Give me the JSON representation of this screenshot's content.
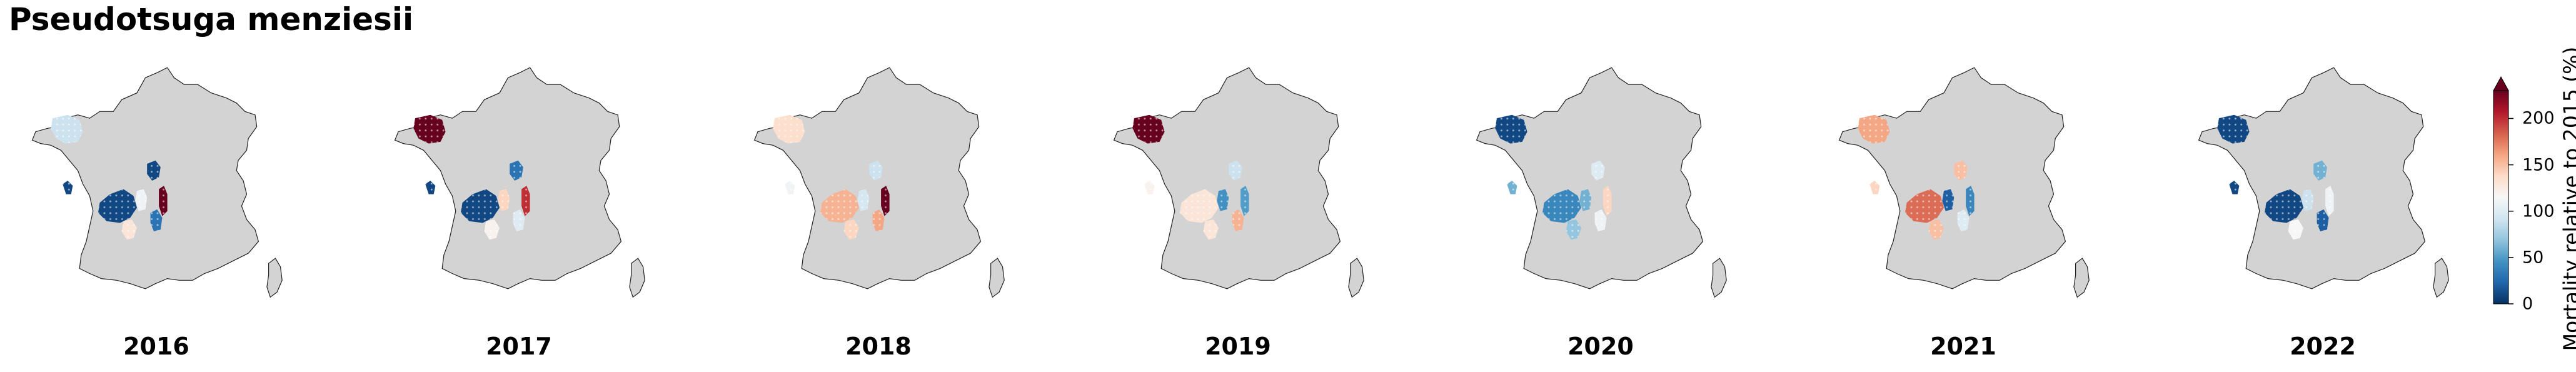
{
  "title": "Pseudotsuga menziesii",
  "colorbar": {
    "label": "Mortality relative to 2015 (%)",
    "ticks": [
      0,
      50,
      100,
      150,
      200
    ],
    "min": 0,
    "max": 230,
    "extend": "max",
    "colormap": "RdBu_r",
    "colors": [
      "#053061",
      "#2166ac",
      "#4393c3",
      "#92c5de",
      "#d1e5f0",
      "#f7f7f7",
      "#fddbc7",
      "#f4a582",
      "#d6604d",
      "#b2182b",
      "#67001f"
    ]
  },
  "background_color": "#d3d3d3",
  "years": [
    {
      "label": "2016",
      "regions": [
        {
          "name": "brittany",
          "value": 90
        },
        {
          "name": "vendee",
          "value": 10
        },
        {
          "name": "limousin",
          "value": 10
        },
        {
          "name": "burgundy",
          "value": 10
        },
        {
          "name": "morvan",
          "value": 230
        },
        {
          "name": "rhone",
          "value": 30
        },
        {
          "name": "dordogne",
          "value": 130
        },
        {
          "name": "allier",
          "value": 110
        }
      ]
    },
    {
      "label": "2017",
      "regions": [
        {
          "name": "brittany",
          "value": 230
        },
        {
          "name": "vendee",
          "value": 10
        },
        {
          "name": "limousin",
          "value": 10
        },
        {
          "name": "burgundy",
          "value": 30
        },
        {
          "name": "morvan",
          "value": 200
        },
        {
          "name": "rhone",
          "value": 100
        },
        {
          "name": "dordogne",
          "value": 120
        },
        {
          "name": "allier",
          "value": 140
        }
      ]
    },
    {
      "label": "2018",
      "regions": [
        {
          "name": "brittany",
          "value": 135
        },
        {
          "name": "vendee",
          "value": 110
        },
        {
          "name": "limousin",
          "value": 155
        },
        {
          "name": "burgundy",
          "value": 90
        },
        {
          "name": "morvan",
          "value": 230
        },
        {
          "name": "rhone",
          "value": 160
        },
        {
          "name": "dordogne",
          "value": 140
        },
        {
          "name": "allier",
          "value": 95
        }
      ]
    },
    {
      "label": "2019",
      "regions": [
        {
          "name": "brittany",
          "value": 230
        },
        {
          "name": "vendee",
          "value": 120
        },
        {
          "name": "limousin",
          "value": 130
        },
        {
          "name": "burgundy",
          "value": 90
        },
        {
          "name": "morvan",
          "value": 50
        },
        {
          "name": "rhone",
          "value": 155
        },
        {
          "name": "dordogne",
          "value": 130
        },
        {
          "name": "allier",
          "value": 45
        }
      ]
    },
    {
      "label": "2020",
      "regions": [
        {
          "name": "brittany",
          "value": 10
        },
        {
          "name": "vendee",
          "value": 60
        },
        {
          "name": "limousin",
          "value": 40
        },
        {
          "name": "burgundy",
          "value": 100
        },
        {
          "name": "morvan",
          "value": 140
        },
        {
          "name": "rhone",
          "value": 110
        },
        {
          "name": "dordogne",
          "value": 70
        },
        {
          "name": "allier",
          "value": 60
        }
      ]
    },
    {
      "label": "2021",
      "regions": [
        {
          "name": "brittany",
          "value": 160
        },
        {
          "name": "vendee",
          "value": 140
        },
        {
          "name": "limousin",
          "value": 180
        },
        {
          "name": "burgundy",
          "value": 150
        },
        {
          "name": "morvan",
          "value": 40
        },
        {
          "name": "rhone",
          "value": 100
        },
        {
          "name": "dordogne",
          "value": 150
        },
        {
          "name": "allier",
          "value": 20
        }
      ]
    },
    {
      "label": "2022",
      "regions": [
        {
          "name": "brittany",
          "value": 10
        },
        {
          "name": "vendee",
          "value": 10
        },
        {
          "name": "limousin",
          "value": 10
        },
        {
          "name": "burgundy",
          "value": 60
        },
        {
          "name": "morvan",
          "value": 110
        },
        {
          "name": "rhone",
          "value": 20
        },
        {
          "name": "dordogne",
          "value": 115
        },
        {
          "name": "allier",
          "value": 90
        }
      ]
    }
  ]
}
